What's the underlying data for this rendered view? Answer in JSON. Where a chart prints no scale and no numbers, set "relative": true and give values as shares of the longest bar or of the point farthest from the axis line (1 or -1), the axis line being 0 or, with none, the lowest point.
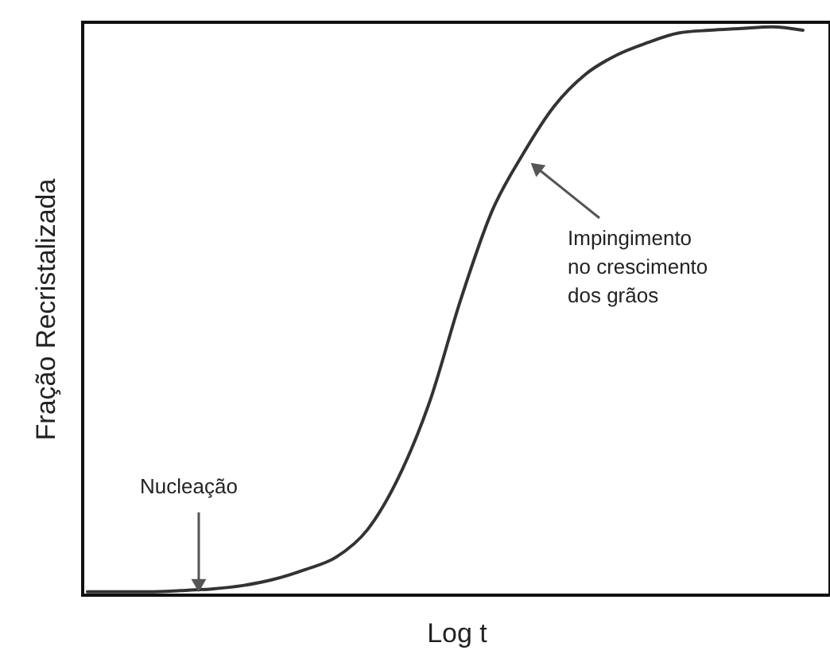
{
  "chart_data": {
    "type": "line",
    "relative": true,
    "xlabel": "Log t",
    "ylabel": "Fração Recristalizada",
    "tick_labels": false,
    "grid": false,
    "marker": "none",
    "line_style": "solid",
    "categories": [
      null,
      null,
      null,
      null,
      null,
      null,
      null,
      null,
      null,
      null,
      null,
      null,
      null,
      null,
      null,
      null,
      null,
      null,
      null,
      null,
      null,
      null,
      null,
      null
    ],
    "series": [
      {
        "color": "#333333",
        "values": [
          0.006,
          0.006,
          0.006,
          0.008,
          0.011,
          0.017,
          0.028,
          0.045,
          0.067,
          0.115,
          0.207,
          0.34,
          0.52,
          0.675,
          0.776,
          0.86,
          0.916,
          0.95,
          0.972,
          0.989,
          0.994,
          0.997,
          1,
          0.994
        ]
      }
    ],
    "annotations": [
      "Nucleação",
      "Impingimento\nno crescimento\ndos grãos"
    ]
  }
}
